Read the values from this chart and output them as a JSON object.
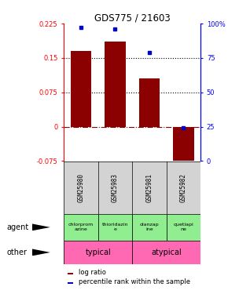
{
  "title": "GDS775 / 21603",
  "samples": [
    "GSM25980",
    "GSM25983",
    "GSM25981",
    "GSM25982"
  ],
  "log_ratio": [
    0.165,
    0.185,
    0.105,
    -0.075
  ],
  "percentile": [
    97,
    96,
    79,
    24
  ],
  "bar_color": "#8B0000",
  "dot_color": "#0000CD",
  "ylim_left": [
    -0.075,
    0.225
  ],
  "ylim_right": [
    0,
    100
  ],
  "yticks_left": [
    -0.075,
    0,
    0.075,
    0.15,
    0.225
  ],
  "yticks_right": [
    0,
    25,
    50,
    75,
    100
  ],
  "ytick_labels_left": [
    "-0.075",
    "0",
    "0.075",
    "0.15",
    "0.225"
  ],
  "ytick_labels_right": [
    "0",
    "25",
    "50",
    "75",
    "100%"
  ],
  "hlines": [
    0.075,
    0.15
  ],
  "agents": [
    "chlorprom\nazine",
    "thioridazin\ne",
    "olanzap\nine",
    "quetiapi\nne"
  ],
  "agent_color": "#90EE90",
  "other_color": "#FF69B4",
  "bar_width": 0.6,
  "bar_color_bright": "#CC0000"
}
